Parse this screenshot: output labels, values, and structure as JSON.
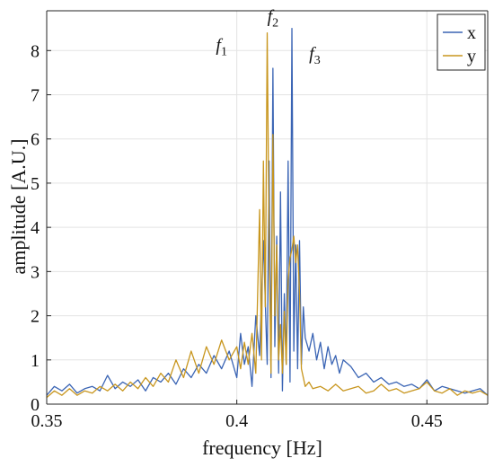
{
  "chart_data": {
    "type": "line",
    "title": "",
    "xlabel": "frequency [Hz]",
    "ylabel": "amplitude [A.U.]",
    "xlim": [
      0.35,
      0.466
    ],
    "ylim": [
      0,
      8.9
    ],
    "x_ticks": [
      0.35,
      0.4,
      0.45
    ],
    "x_tick_labels": [
      "0.35",
      "0.4",
      "0.45"
    ],
    "y_ticks": [
      0,
      1,
      2,
      3,
      4,
      5,
      6,
      7,
      8
    ],
    "y_tick_labels": [
      "0",
      "1",
      "2",
      "3",
      "4",
      "5",
      "6",
      "7",
      "8"
    ],
    "grid": true,
    "legend": {
      "position": "top-right"
    },
    "annotations": [
      {
        "base": "f",
        "sub": "1",
        "x": 0.396,
        "y": 8.0
      },
      {
        "base": "f",
        "sub": "2",
        "x": 0.4095,
        "y": 8.65
      },
      {
        "base": "f",
        "sub": "3",
        "x": 0.4205,
        "y": 7.8
      }
    ],
    "series": [
      {
        "name": "x",
        "color": "#3a64b4",
        "x": [
          0.35,
          0.352,
          0.354,
          0.356,
          0.358,
          0.36,
          0.362,
          0.364,
          0.366,
          0.368,
          0.37,
          0.372,
          0.374,
          0.376,
          0.378,
          0.38,
          0.382,
          0.384,
          0.386,
          0.388,
          0.39,
          0.392,
          0.394,
          0.396,
          0.398,
          0.4,
          0.401,
          0.402,
          0.403,
          0.404,
          0.405,
          0.406,
          0.407,
          0.408,
          0.4085,
          0.409,
          0.4095,
          0.41,
          0.4105,
          0.411,
          0.4115,
          0.412,
          0.4125,
          0.413,
          0.4135,
          0.414,
          0.4145,
          0.415,
          0.4155,
          0.416,
          0.4165,
          0.417,
          0.4175,
          0.418,
          0.419,
          0.42,
          0.421,
          0.422,
          0.423,
          0.424,
          0.425,
          0.426,
          0.427,
          0.428,
          0.43,
          0.432,
          0.434,
          0.436,
          0.438,
          0.44,
          0.442,
          0.444,
          0.446,
          0.448,
          0.45,
          0.452,
          0.454,
          0.456,
          0.458,
          0.46,
          0.462,
          0.464,
          0.466
        ],
        "y": [
          0.2,
          0.4,
          0.3,
          0.45,
          0.25,
          0.35,
          0.4,
          0.3,
          0.65,
          0.35,
          0.5,
          0.4,
          0.55,
          0.3,
          0.6,
          0.5,
          0.7,
          0.45,
          0.8,
          0.6,
          0.9,
          0.7,
          1.1,
          0.8,
          1.2,
          0.6,
          1.6,
          0.9,
          1.3,
          0.4,
          2.0,
          1.1,
          3.7,
          0.9,
          5.5,
          0.6,
          7.6,
          1.3,
          3.8,
          0.7,
          4.8,
          0.3,
          2.5,
          0.9,
          5.5,
          0.5,
          8.5,
          1.2,
          3.6,
          0.8,
          3.7,
          0.9,
          2.2,
          1.5,
          1.2,
          1.6,
          1.0,
          1.4,
          0.8,
          1.3,
          0.9,
          1.1,
          0.7,
          1.0,
          0.85,
          0.6,
          0.7,
          0.5,
          0.6,
          0.45,
          0.5,
          0.4,
          0.45,
          0.35,
          0.55,
          0.3,
          0.4,
          0.35,
          0.3,
          0.25,
          0.3,
          0.35,
          0.2
        ]
      },
      {
        "name": "y",
        "color": "#c8961e",
        "x": [
          0.35,
          0.352,
          0.354,
          0.356,
          0.358,
          0.36,
          0.362,
          0.364,
          0.366,
          0.368,
          0.37,
          0.372,
          0.374,
          0.376,
          0.378,
          0.38,
          0.382,
          0.384,
          0.386,
          0.388,
          0.39,
          0.392,
          0.394,
          0.396,
          0.398,
          0.4,
          0.401,
          0.402,
          0.403,
          0.404,
          0.405,
          0.406,
          0.4065,
          0.407,
          0.4075,
          0.408,
          0.4085,
          0.409,
          0.4095,
          0.41,
          0.4105,
          0.411,
          0.4115,
          0.412,
          0.4125,
          0.413,
          0.4135,
          0.414,
          0.4145,
          0.415,
          0.4155,
          0.416,
          0.4165,
          0.417,
          0.418,
          0.419,
          0.42,
          0.422,
          0.424,
          0.426,
          0.428,
          0.43,
          0.432,
          0.434,
          0.436,
          0.438,
          0.44,
          0.442,
          0.444,
          0.446,
          0.448,
          0.45,
          0.452,
          0.454,
          0.456,
          0.458,
          0.46,
          0.462,
          0.464,
          0.466
        ],
        "y": [
          0.15,
          0.3,
          0.2,
          0.35,
          0.2,
          0.3,
          0.25,
          0.4,
          0.3,
          0.45,
          0.3,
          0.5,
          0.35,
          0.6,
          0.4,
          0.7,
          0.5,
          1.0,
          0.6,
          1.2,
          0.7,
          1.3,
          0.9,
          1.45,
          1.0,
          1.3,
          0.8,
          1.4,
          0.9,
          1.6,
          0.7,
          4.4,
          1.0,
          5.5,
          2.2,
          8.4,
          3.6,
          0.7,
          6.1,
          2.0,
          3.6,
          1.0,
          1.8,
          0.7,
          2.1,
          0.9,
          2.8,
          3.3,
          3.5,
          3.8,
          3.2,
          3.6,
          2.5,
          0.8,
          0.4,
          0.5,
          0.35,
          0.4,
          0.3,
          0.45,
          0.3,
          0.35,
          0.4,
          0.25,
          0.3,
          0.45,
          0.3,
          0.35,
          0.25,
          0.3,
          0.35,
          0.5,
          0.3,
          0.25,
          0.35,
          0.2,
          0.3,
          0.25,
          0.3,
          0.2
        ]
      }
    ]
  }
}
